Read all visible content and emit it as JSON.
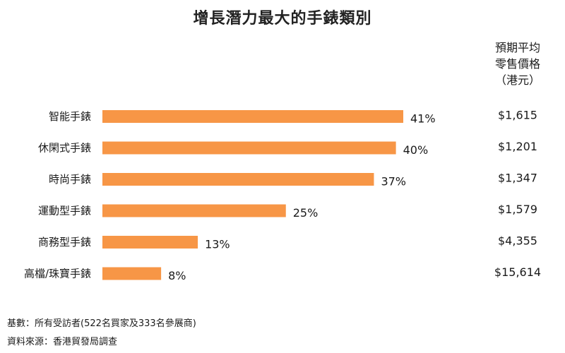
{
  "chart_data": {
    "type": "bar",
    "orientation": "horizontal",
    "title": "增長潛力最大的手錶類別",
    "categories": [
      "智能手錶",
      "休閑式手錶",
      "時尚手錶",
      "運動型手錶",
      "商務型手錶",
      "高檔/珠寶手錶"
    ],
    "values": [
      41,
      40,
      37,
      25,
      13,
      8
    ],
    "value_labels": [
      "41%",
      "40%",
      "37%",
      "25%",
      "13%",
      "8%"
    ],
    "unit": "%",
    "xlim": [
      0,
      41
    ],
    "grid": false,
    "legend": "none",
    "bar_color": "#F79646"
  },
  "price_column": {
    "header_lines": [
      "預期平均",
      "零售價格",
      "（港元）"
    ],
    "values": [
      "$1,615",
      "$1,201",
      "$1,347",
      "$1,579",
      "$4,355",
      "$15,614"
    ]
  },
  "footnotes": {
    "base": "基數：所有受訪者(522名買家及333名參展商)",
    "source": "資料來源：香港貿發局調查"
  }
}
